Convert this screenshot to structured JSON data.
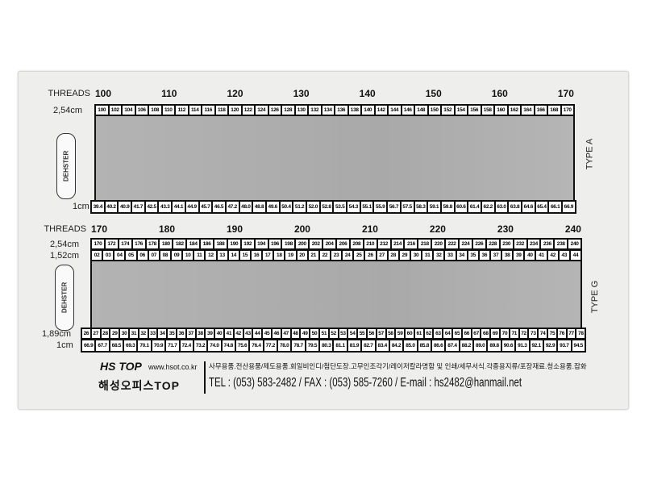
{
  "type_a": {
    "threads_label": "THREADS",
    "threads": [
      "100",
      "110",
      "120",
      "130",
      "140",
      "150",
      "160",
      "170"
    ],
    "row_254_label": "2,54cm",
    "row_254": [
      "100",
      "102",
      "104",
      "106",
      "108",
      "110",
      "112",
      "114",
      "116",
      "118",
      "120",
      "122",
      "124",
      "126",
      "128",
      "130",
      "132",
      "134",
      "136",
      "138",
      "140",
      "142",
      "144",
      "146",
      "148",
      "150",
      "152",
      "154",
      "156",
      "158",
      "160",
      "162",
      "164",
      "166",
      "168",
      "170"
    ],
    "row_1cm_label": "1cm",
    "row_1cm": [
      "39.4",
      "40.2",
      "40.9",
      "41.7",
      "42.5",
      "43.3",
      "44.1",
      "44.9",
      "45.7",
      "46.5",
      "47.2",
      "48.0",
      "48.8",
      "49.6",
      "50.4",
      "51.2",
      "52.0",
      "52.8",
      "53.5",
      "54.3",
      "55.1",
      "55.9",
      "56.7",
      "57.5",
      "58.3",
      "59.1",
      "59.8",
      "60.6",
      "61.4",
      "62.2",
      "63.0",
      "63.8",
      "64.6",
      "65.4",
      "66.1",
      "66.9"
    ],
    "type_label": "TYPE A",
    "logo_text": "DEHSTER"
  },
  "type_g": {
    "threads_label": "THREADS",
    "threads": [
      "170",
      "180",
      "190",
      "200",
      "210",
      "220",
      "230",
      "240"
    ],
    "row_254_label": "2,54cm",
    "row_254": [
      "170",
      "172",
      "174",
      "176",
      "178",
      "180",
      "182",
      "184",
      "186",
      "188",
      "190",
      "192",
      "194",
      "196",
      "198",
      "200",
      "202",
      "204",
      "206",
      "208",
      "210",
      "212",
      "214",
      "216",
      "218",
      "220",
      "222",
      "224",
      "226",
      "228",
      "230",
      "232",
      "234",
      "236",
      "238",
      "240"
    ],
    "row_152_label": "1,52cm",
    "row_152": [
      "02",
      "03",
      "04",
      "05",
      "06",
      "07",
      "08",
      "09",
      "10",
      "11",
      "12",
      "13",
      "14",
      "15",
      "16",
      "17",
      "18",
      "19",
      "20",
      "21",
      "22",
      "23",
      "24",
      "25",
      "26",
      "27",
      "28",
      "29",
      "30",
      "31",
      "32",
      "33",
      "34",
      "35",
      "36",
      "37",
      "38",
      "39",
      "40",
      "41",
      "42",
      "43",
      "44"
    ],
    "row_189_label": "1,89cm",
    "row_189": [
      "26",
      "27",
      "28",
      "29",
      "30",
      "31",
      "32",
      "33",
      "34",
      "35",
      "36",
      "37",
      "38",
      "39",
      "40",
      "41",
      "42",
      "43",
      "44",
      "45",
      "46",
      "47",
      "48",
      "49",
      "50",
      "51",
      "52",
      "53",
      "54",
      "55",
      "56",
      "57",
      "58",
      "59",
      "60",
      "61",
      "62",
      "63",
      "64",
      "65",
      "66",
      "67",
      "68",
      "69",
      "70",
      "71",
      "72",
      "73",
      "74",
      "75",
      "76",
      "77",
      "78"
    ],
    "row_1cm_label": "1cm",
    "row_1cm": [
      "66.9",
      "67.7",
      "68.5",
      "69.3",
      "70.1",
      "70.9",
      "71.7",
      "72.4",
      "73.2",
      "74.0",
      "74.8",
      "75.6",
      "76.4",
      "77.2",
      "78.0",
      "78.7",
      "79.5",
      "80.3",
      "81.1",
      "81.9",
      "82.7",
      "83.4",
      "84.2",
      "85.0",
      "85.8",
      "86.6",
      "87.4",
      "88.2",
      "89.0",
      "89.8",
      "90.6",
      "91.3",
      "92.1",
      "92.9",
      "93.7",
      "94.5"
    ],
    "type_label": "TYPE G",
    "logo_text": "DEHSTER"
  },
  "footer": {
    "brand_logo": "HS TOP",
    "brand_name": "해성오피스TOP",
    "website": "www.hsot.co.kr",
    "services": "사무용품.전산용품/제도용품.회일비인디/첨단도장.고무인조각기/레이저칼라명함 및 인쇄/세무서식.각종용지류/포장재료.청소용품.잡화",
    "contact": "TEL : (053) 583-2482 /  FAX : (053) 585-7260 / E-mail : hs2482@hanmail.net"
  }
}
